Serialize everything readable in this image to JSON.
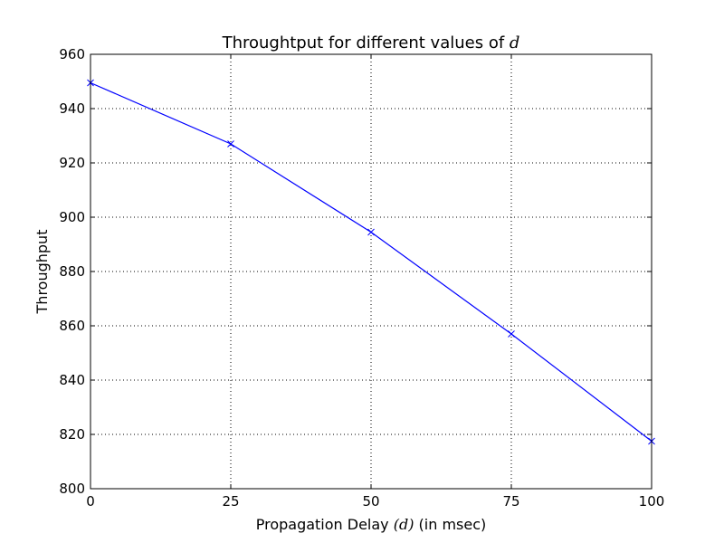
{
  "chart_data": {
    "type": "line",
    "title": {
      "text": "Throughtput for different values of ",
      "math": "d"
    },
    "xlabel": {
      "prefix": "Propagation Delay ",
      "math": "(d)",
      "suffix": " (in msec)"
    },
    "ylabel": "Throughput",
    "x": [
      0,
      25,
      50,
      75,
      100
    ],
    "series": [
      {
        "name": "",
        "color": "#0000ff",
        "marker": "x",
        "values": [
          949.5,
          927.0,
          894.5,
          857.0,
          817.5
        ]
      }
    ],
    "xlim": [
      0,
      100
    ],
    "ylim": [
      800,
      960
    ],
    "xticks": [
      0,
      25,
      50,
      75,
      100
    ],
    "xtick_labels": [
      "0",
      "25",
      "50",
      "75",
      "100"
    ],
    "yticks": [
      800,
      820,
      840,
      860,
      880,
      900,
      920,
      940,
      960
    ],
    "ytick_labels": [
      "800",
      "820",
      "840",
      "860",
      "880",
      "900",
      "920",
      "940",
      "960"
    ],
    "grid": true,
    "grid_style": "dotted"
  }
}
